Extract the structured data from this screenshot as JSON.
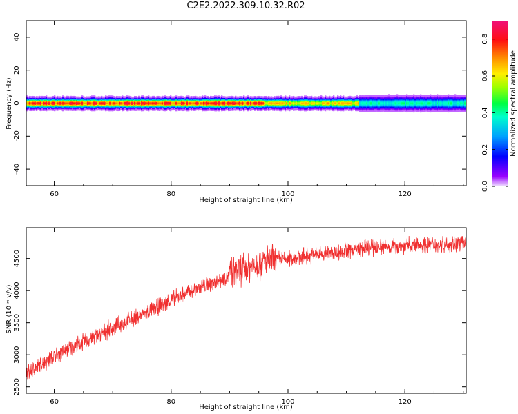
{
  "title": "C2E2.2022.309.10.32.R02",
  "chart_data": [
    {
      "type": "heatmap",
      "xlabel": "Height of straight line (km)",
      "ylabel": "Frequency (Hz)",
      "xlim": [
        55.2,
        130.5
      ],
      "ylim": [
        -50,
        50
      ],
      "xticks": [
        60,
        80,
        100,
        120
      ],
      "yticks": [
        40,
        20,
        0,
        -20,
        -40
      ],
      "colorbar": {
        "label": "Normalized spectral amplitude",
        "range": [
          0,
          0.9
        ],
        "ticks": [
          "0.0",
          "0.2",
          "0.4",
          "0.6",
          "0.8"
        ],
        "colormap": "gist_ncar-like (purple-blue-cyan-green-yellow-orange-red-magenta)"
      },
      "features": [
        {
          "description": "narrow band near 0 Hz",
          "frequency_hz": 0,
          "half_width_hz": 3
        },
        {
          "x_range": [
            55.2,
            96
          ],
          "peak_amplitude": 0.8
        },
        {
          "x_range": [
            96,
            112
          ],
          "peak_amplitude": 0.65
        },
        {
          "x_range": [
            112,
            130.5
          ],
          "peak_amplitude": 0.4
        }
      ]
    },
    {
      "type": "line",
      "xlabel": "Height of straight line (km)",
      "ylabel": "SNR (10 * v/v)",
      "xlim": [
        55.2,
        130.5
      ],
      "ylim": [
        2400,
        4980
      ],
      "xticks": [
        60,
        80,
        100,
        120
      ],
      "yticks": [
        2500,
        3000,
        3500,
        4000,
        4500
      ],
      "series": [
        {
          "color": "#f03030",
          "trend_x": [
            55.2,
            60,
            65,
            70,
            75,
            80,
            85,
            88,
            90,
            92,
            94,
            96,
            98,
            100,
            105,
            110,
            115,
            120,
            125,
            130.5
          ],
          "trend_y": [
            2700,
            2980,
            3200,
            3420,
            3620,
            3850,
            4050,
            4150,
            4250,
            4330,
            4400,
            4450,
            4480,
            4500,
            4560,
            4620,
            4680,
            4700,
            4720,
            4740
          ],
          "noise_amplitude": 160
        }
      ]
    }
  ]
}
